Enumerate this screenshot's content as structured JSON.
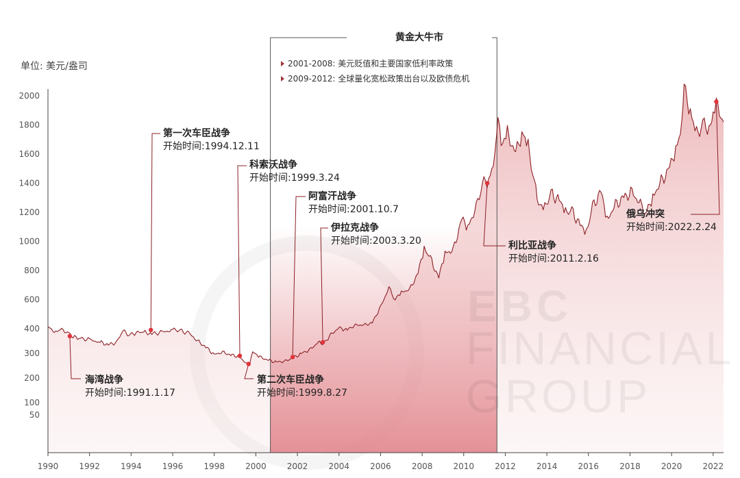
{
  "unit_label": "单位: 美元/盎司",
  "bull_market": {
    "title": "黄金大牛市",
    "notes": [
      "2001-2008: 美元贬值和主要国家低利率政策",
      "2009-2012: 全球量化宽松政策出台以及欧债危机"
    ]
  },
  "events": [
    {
      "name": "海湾战争",
      "start": "开始时间:1991.1.17"
    },
    {
      "name": "第一次车臣战争",
      "start": "开始时间:1994.12.11"
    },
    {
      "name": "科索沃战争",
      "start": "开始时间:1999.3.24"
    },
    {
      "name": "第二次车臣战争",
      "start": "开始时间:1999.8.27"
    },
    {
      "name": "阿富汗战争",
      "start": "开始时间:2001.10.7"
    },
    {
      "name": "伊拉克战争",
      "start": "开始时间:2003.3.20"
    },
    {
      "name": "利比亚战争",
      "start": "开始时间:2011.2.16"
    },
    {
      "name": "俄乌冲突",
      "start": "开始时间:2022.2.24"
    }
  ],
  "watermark": [
    "EBC",
    "FINANCIAL",
    "GROUP"
  ],
  "chart_data": {
    "type": "area",
    "title": "",
    "xlabel": "",
    "ylabel": "单位: 美元/盎司",
    "xlim": [
      1990,
      2022.5
    ],
    "x_ticks": [
      "1990",
      "1992",
      "1994",
      "1996",
      "1998",
      "2000",
      "2002",
      "2004",
      "2006",
      "2008",
      "2010",
      "2012",
      "2014",
      "2016",
      "2018",
      "2020",
      "2022"
    ],
    "y_ticks": [
      "50",
      "100",
      "200",
      "300",
      "400",
      "600",
      "800",
      "1000",
      "1200",
      "1400",
      "1600",
      "1800",
      "2000"
    ],
    "y_axis_note": "non-uniform scale: 0-50 step 50, 50-400 step 100 in equal tick spacing, 400-2000 step 200",
    "grid": false,
    "line_color": "#8b1f24",
    "fill_color": "#e8a3a6",
    "highlight_band": {
      "x_start": 2000.7,
      "x_end": 2011.6,
      "label": "黄金大牛市",
      "color": "#e07f86"
    },
    "series": [
      {
        "values": [
          [
            1990.0,
            415
          ],
          [
            1990.3,
            380
          ],
          [
            1990.6,
            400
          ],
          [
            1990.8,
            385
          ],
          [
            1991.0,
            380
          ],
          [
            1991.2,
            365
          ],
          [
            1991.5,
            362
          ],
          [
            1992.0,
            355
          ],
          [
            1992.5,
            345
          ],
          [
            1992.9,
            335
          ],
          [
            1993.3,
            345
          ],
          [
            1993.6,
            390
          ],
          [
            1993.9,
            375
          ],
          [
            1994.3,
            385
          ],
          [
            1994.6,
            385
          ],
          [
            1995.0,
            380
          ],
          [
            1995.5,
            385
          ],
          [
            1996.0,
            395
          ],
          [
            1996.3,
            395
          ],
          [
            1996.8,
            380
          ],
          [
            1997.2,
            350
          ],
          [
            1997.6,
            325
          ],
          [
            1998.0,
            295
          ],
          [
            1998.4,
            305
          ],
          [
            1998.8,
            293
          ],
          [
            1999.2,
            288
          ],
          [
            1999.5,
            258
          ],
          [
            1999.7,
            255
          ],
          [
            1999.85,
            305
          ],
          [
            2000.2,
            285
          ],
          [
            2000.6,
            272
          ],
          [
            2001.0,
            265
          ],
          [
            2001.4,
            268
          ],
          [
            2001.8,
            282
          ],
          [
            2002.2,
            300
          ],
          [
            2002.6,
            315
          ],
          [
            2003.0,
            345
          ],
          [
            2003.2,
            335
          ],
          [
            2003.6,
            375
          ],
          [
            2004.0,
            405
          ],
          [
            2004.4,
            395
          ],
          [
            2004.8,
            425
          ],
          [
            2005.2,
            425
          ],
          [
            2005.6,
            440
          ],
          [
            2006.0,
            550
          ],
          [
            2006.4,
            680
          ],
          [
            2006.7,
            600
          ],
          [
            2007.0,
            650
          ],
          [
            2007.4,
            670
          ],
          [
            2007.8,
            780
          ],
          [
            2008.1,
            950
          ],
          [
            2008.4,
            880
          ],
          [
            2008.8,
            750
          ],
          [
            2009.1,
            920
          ],
          [
            2009.5,
            940
          ],
          [
            2009.9,
            1150
          ],
          [
            2010.2,
            1100
          ],
          [
            2010.6,
            1230
          ],
          [
            2010.9,
            1400
          ],
          [
            2011.2,
            1420
          ],
          [
            2011.5,
            1560
          ],
          [
            2011.65,
            1840
          ],
          [
            2011.8,
            1650
          ],
          [
            2012.1,
            1740
          ],
          [
            2012.5,
            1600
          ],
          [
            2012.8,
            1750
          ],
          [
            2013.1,
            1650
          ],
          [
            2013.4,
            1400
          ],
          [
            2013.6,
            1250
          ],
          [
            2013.9,
            1230
          ],
          [
            2014.2,
            1330
          ],
          [
            2014.6,
            1280
          ],
          [
            2014.9,
            1200
          ],
          [
            2015.2,
            1210
          ],
          [
            2015.6,
            1110
          ],
          [
            2015.9,
            1060
          ],
          [
            2016.2,
            1240
          ],
          [
            2016.6,
            1340
          ],
          [
            2016.9,
            1150
          ],
          [
            2017.3,
            1250
          ],
          [
            2017.7,
            1300
          ],
          [
            2018.1,
            1340
          ],
          [
            2018.5,
            1250
          ],
          [
            2018.8,
            1200
          ],
          [
            2019.1,
            1310
          ],
          [
            2019.5,
            1410
          ],
          [
            2019.9,
            1500
          ],
          [
            2020.2,
            1640
          ],
          [
            2020.5,
            1780
          ],
          [
            2020.6,
            2060
          ],
          [
            2020.9,
            1900
          ],
          [
            2021.2,
            1730
          ],
          [
            2021.5,
            1810
          ],
          [
            2021.8,
            1790
          ],
          [
            2022.0,
            1830
          ],
          [
            2022.15,
            1950
          ],
          [
            2022.3,
            1860
          ],
          [
            2022.5,
            1820
          ]
        ]
      }
    ],
    "markers": [
      {
        "x": 1991.05,
        "y": 370
      },
      {
        "x": 1994.95,
        "y": 395
      },
      {
        "x": 1999.23,
        "y": 290
      },
      {
        "x": 1999.65,
        "y": 257
      },
      {
        "x": 2001.77,
        "y": 285
      },
      {
        "x": 2003.22,
        "y": 345
      },
      {
        "x": 2011.13,
        "y": 1400
      },
      {
        "x": 2022.15,
        "y": 1960
      }
    ]
  }
}
